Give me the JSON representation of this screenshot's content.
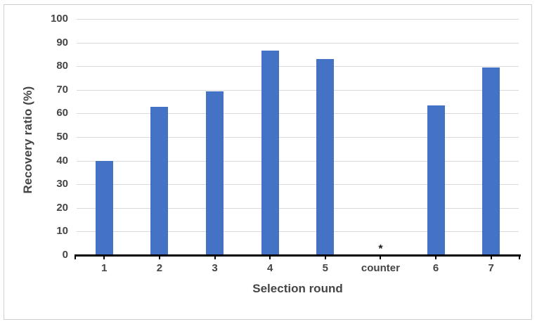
{
  "chart_data": {
    "type": "bar",
    "title": "",
    "xlabel": "Selection round",
    "ylabel": "Recovery ratio (%)",
    "categories": [
      "1",
      "2",
      "3",
      "4",
      "5",
      "counter",
      "6",
      "7"
    ],
    "values": [
      39.9,
      62.9,
      69.3,
      86.7,
      83.1,
      null,
      63.4,
      79.5
    ],
    "annotations": [
      {
        "category": "counter",
        "text": "*"
      }
    ],
    "ylim": [
      0,
      100
    ],
    "ytick_step": 10,
    "ytick_labels": [
      "0",
      "10",
      "20",
      "30",
      "40",
      "50",
      "60",
      "70",
      "80",
      "90",
      "100"
    ],
    "grid": "horizontal",
    "legend": "none",
    "bar_color": "#4472C4",
    "gridline_color": "#D9D9D9",
    "axis_color": "#000000",
    "label_color": "#454545"
  }
}
